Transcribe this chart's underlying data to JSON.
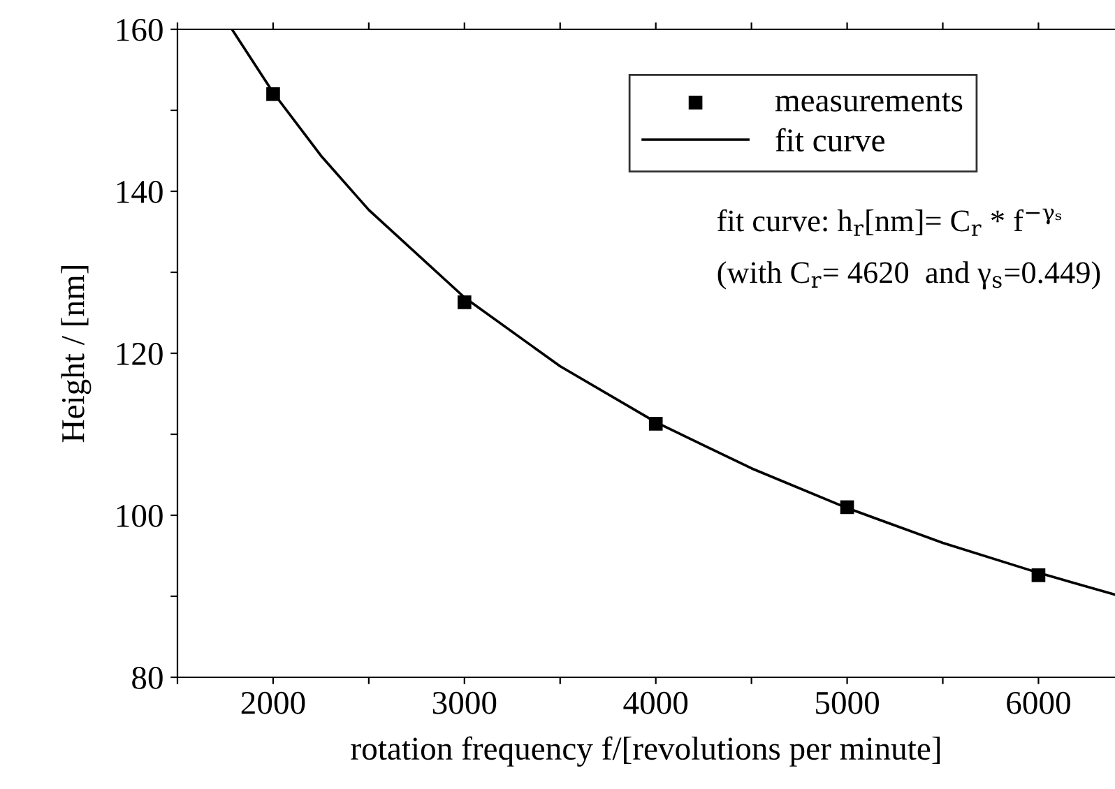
{
  "chart_data": {
    "type": "scatter",
    "xlabel": "rotation frequency f/[revolutions per minute]",
    "ylabel": "Height / [nm]",
    "series": [
      {
        "name": "measurements",
        "color": "#000000",
        "marker": "square",
        "x": [
          2000,
          3000,
          4000,
          5000,
          6000
        ],
        "values": [
          152,
          126.3,
          111.3,
          101.0,
          92.6
        ]
      },
      {
        "name": "fit curve",
        "type": "line",
        "color": "#000000",
        "marker": "none",
        "line_style": "solid",
        "x": [
          1785,
          2000,
          2250,
          2500,
          3000,
          3500,
          4000,
          4500,
          5000,
          5500,
          6000,
          6400
        ],
        "values": [
          160,
          152.2,
          144.4,
          137.7,
          126.9,
          118.4,
          111.5,
          105.8,
          100.9,
          96.6,
          92.9,
          90.2
        ]
      }
    ],
    "annotations": [
      "fit curve: h$_{r}$[nm]= C$_{r}$ * f$^{−γₛ}$",
      "(with C$_{r}$= 4620  and γ$_{s}$=0.449)"
    ],
    "xlim": [
      1500,
      6400
    ],
    "ylim": [
      80,
      160
    ],
    "xticks": [
      {
        "value": 1500,
        "label": null
      },
      2000,
      {
        "value": 2500,
        "label": null
      },
      3000,
      {
        "value": 3500,
        "label": null
      },
      4000,
      {
        "value": 4500,
        "label": null
      },
      5000,
      {
        "value": 5500,
        "label": null
      },
      6000
    ],
    "yticks": [
      80,
      {
        "value": 90,
        "label": null
      },
      100,
      {
        "value": 110,
        "label": null
      },
      120,
      {
        "value": 130,
        "label": null
      },
      140,
      {
        "value": 150,
        "label": null
      },
      160
    ],
    "grid": false,
    "legend": "top right"
  }
}
